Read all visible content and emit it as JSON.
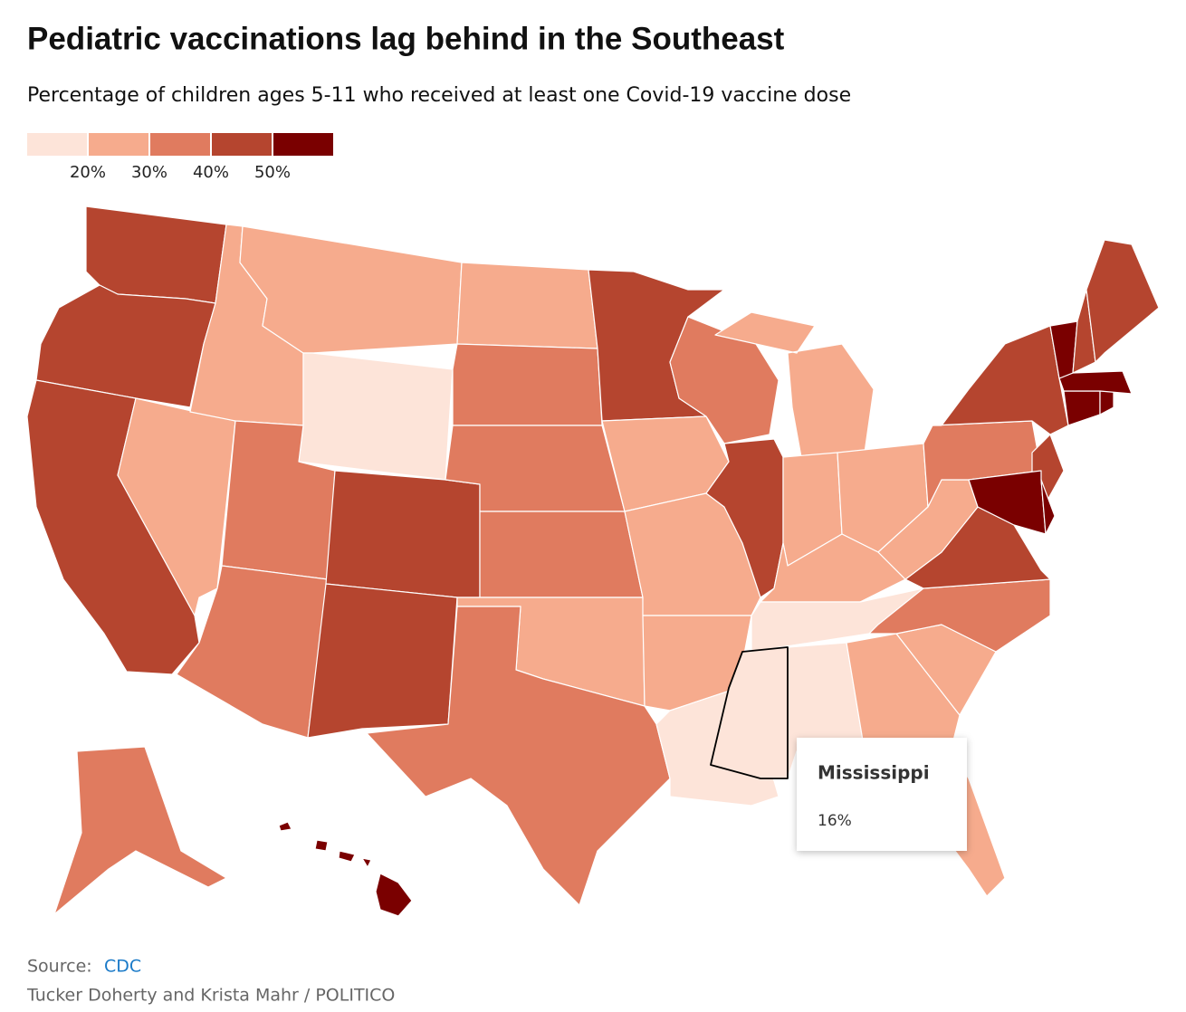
{
  "chart_data": {
    "type": "choropleth",
    "title": "Pediatric vaccinations lag behind in the Southeast",
    "subtitle": "Percentage of children ages 5-11 who received at least one Covid-19 vaccine dose",
    "legend": {
      "colors": [
        "#fde4d9",
        "#f6ab8d",
        "#e07b5f",
        "#b5452f",
        "#7a0000"
      ],
      "ticks": [
        {
          "value": 20,
          "label": "20%"
        },
        {
          "value": 30,
          "label": "30%"
        },
        {
          "value": 40,
          "label": "40%"
        },
        {
          "value": 50,
          "label": "50%"
        }
      ]
    },
    "values": [
      45,
      45,
      45,
      25,
      25,
      25,
      15,
      35,
      35,
      45,
      45,
      25,
      35,
      35,
      35,
      25,
      35,
      45,
      25,
      25,
      25,
      15,
      35,
      45,
      25,
      25,
      25,
      25,
      15,
      16,
      15,
      25,
      25,
      25,
      35,
      45,
      25,
      35,
      45,
      45,
      55,
      55,
      55,
      55,
      55,
      55,
      45,
      45,
      35,
      55
    ],
    "tooltip": {
      "title": "Mississippi",
      "value": 16,
      "value_label": "16%"
    },
    "source_label": "Source:",
    "source": "CDC",
    "credit": "Tucker Doherty and Krista Mahr / POLITICO"
  }
}
